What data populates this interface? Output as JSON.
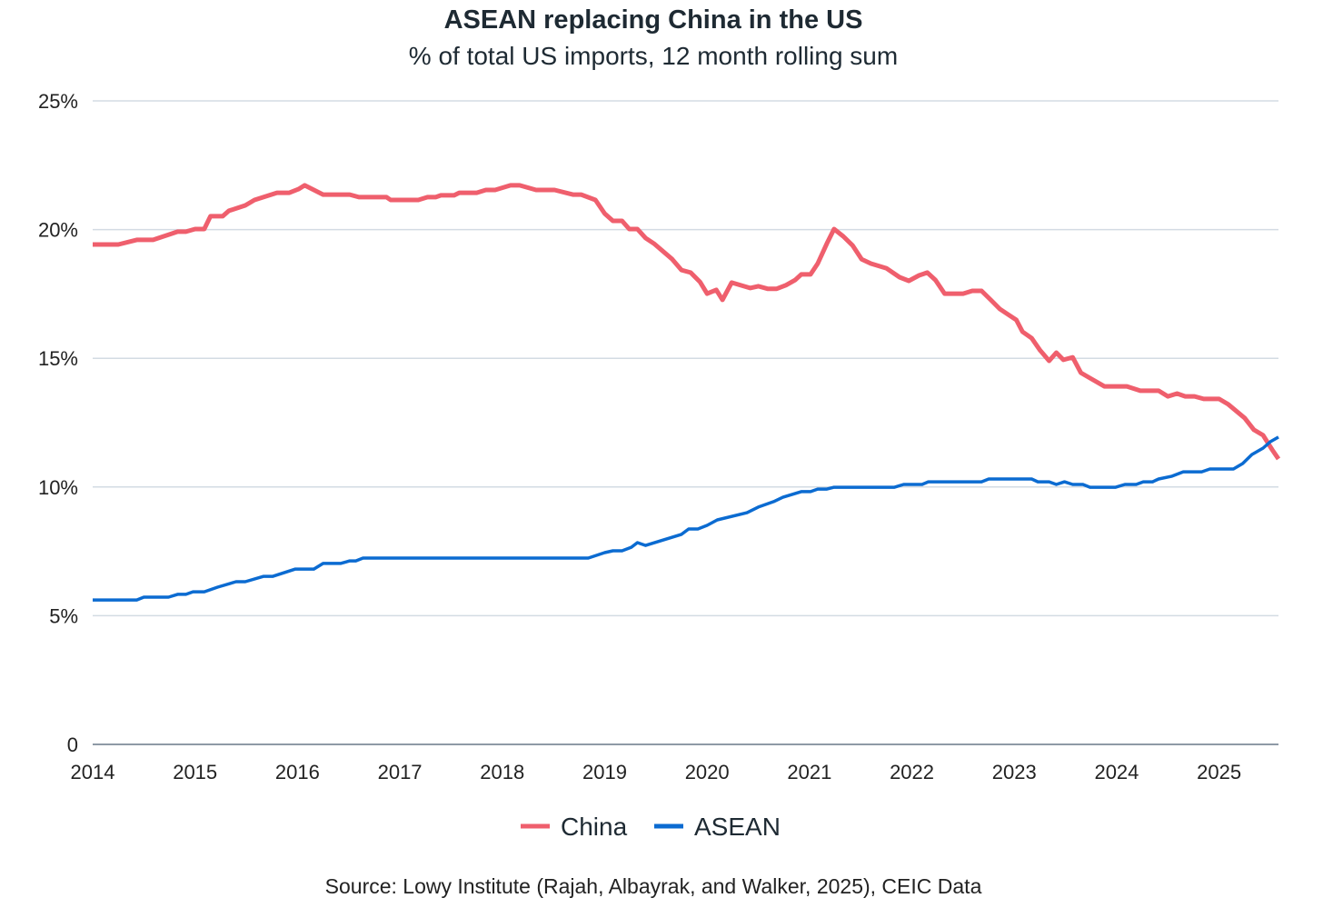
{
  "chart_data": {
    "type": "line",
    "title": "ASEAN replacing China in the US",
    "subtitle": "% of total US imports, 12 month rolling sum",
    "xlabel": "",
    "ylabel": "",
    "ylim": [
      0,
      25
    ],
    "xlim": [
      2014,
      2025.58
    ],
    "y_ticks": [
      0,
      5,
      10,
      15,
      20,
      25
    ],
    "y_tick_labels": [
      "0",
      "5%",
      "10%",
      "15%",
      "20%",
      "25%"
    ],
    "x_ticks": [
      2014,
      2015,
      2016,
      2017,
      2018,
      2019,
      2020,
      2021,
      2022,
      2023,
      2024,
      2025
    ],
    "x_tick_labels": [
      "2014",
      "2015",
      "2016",
      "2017",
      "2018",
      "2019",
      "2020",
      "2021",
      "2022",
      "2023",
      "2024",
      "2025"
    ],
    "grid": "horizontal",
    "legend_position": "bottom-center",
    "series": [
      {
        "name": "China",
        "color": "#ef5f6d",
        "points": [
          [
            2014.0,
            19.42
          ],
          [
            2014.25,
            19.42
          ],
          [
            2014.43,
            19.6
          ],
          [
            2014.59,
            19.6
          ],
          [
            2014.83,
            19.92
          ],
          [
            2014.91,
            19.92
          ],
          [
            2015.0,
            20.02
          ],
          [
            2015.09,
            20.02
          ],
          [
            2015.15,
            20.52
          ],
          [
            2015.27,
            20.52
          ],
          [
            2015.33,
            20.73
          ],
          [
            2015.49,
            20.94
          ],
          [
            2015.58,
            21.15
          ],
          [
            2015.8,
            21.43
          ],
          [
            2015.92,
            21.43
          ],
          [
            2016.01,
            21.57
          ],
          [
            2016.07,
            21.72
          ],
          [
            2016.25,
            21.36
          ],
          [
            2016.51,
            21.36
          ],
          [
            2016.6,
            21.26
          ],
          [
            2016.87,
            21.26
          ],
          [
            2016.91,
            21.15
          ],
          [
            2017.18,
            21.15
          ],
          [
            2017.27,
            21.26
          ],
          [
            2017.35,
            21.26
          ],
          [
            2017.4,
            21.33
          ],
          [
            2017.53,
            21.33
          ],
          [
            2017.58,
            21.43
          ],
          [
            2017.75,
            21.43
          ],
          [
            2017.84,
            21.54
          ],
          [
            2017.93,
            21.54
          ],
          [
            2018.08,
            21.72
          ],
          [
            2018.17,
            21.72
          ],
          [
            2018.33,
            21.54
          ],
          [
            2018.51,
            21.54
          ],
          [
            2018.69,
            21.36
          ],
          [
            2018.77,
            21.36
          ],
          [
            2018.91,
            21.15
          ],
          [
            2019.0,
            20.62
          ],
          [
            2019.08,
            20.34
          ],
          [
            2019.17,
            20.34
          ],
          [
            2019.24,
            20.02
          ],
          [
            2019.32,
            20.02
          ],
          [
            2019.4,
            19.67
          ],
          [
            2019.48,
            19.46
          ],
          [
            2019.66,
            18.85
          ],
          [
            2019.75,
            18.43
          ],
          [
            2019.84,
            18.33
          ],
          [
            2019.93,
            17.97
          ],
          [
            2020.0,
            17.51
          ],
          [
            2020.09,
            17.66
          ],
          [
            2020.15,
            17.27
          ],
          [
            2020.24,
            17.94
          ],
          [
            2020.42,
            17.73
          ],
          [
            2020.5,
            17.8
          ],
          [
            2020.59,
            17.7
          ],
          [
            2020.68,
            17.7
          ],
          [
            2020.77,
            17.84
          ],
          [
            2020.86,
            18.04
          ],
          [
            2020.92,
            18.26
          ],
          [
            2021.01,
            18.26
          ],
          [
            2021.08,
            18.68
          ],
          [
            2021.17,
            19.46
          ],
          [
            2021.24,
            20.02
          ],
          [
            2021.33,
            19.74
          ],
          [
            2021.42,
            19.39
          ],
          [
            2021.51,
            18.85
          ],
          [
            2021.6,
            18.68
          ],
          [
            2021.75,
            18.5
          ],
          [
            2021.88,
            18.15
          ],
          [
            2021.97,
            18.01
          ],
          [
            2022.07,
            18.22
          ],
          [
            2022.15,
            18.33
          ],
          [
            2022.23,
            18.04
          ],
          [
            2022.32,
            17.51
          ],
          [
            2022.5,
            17.51
          ],
          [
            2022.59,
            17.62
          ],
          [
            2022.68,
            17.62
          ],
          [
            2022.77,
            17.27
          ],
          [
            2022.86,
            16.91
          ],
          [
            2022.94,
            16.7
          ],
          [
            2023.02,
            16.49
          ],
          [
            2023.08,
            16.03
          ],
          [
            2023.17,
            15.78
          ],
          [
            2023.25,
            15.32
          ],
          [
            2023.34,
            14.9
          ],
          [
            2023.41,
            15.22
          ],
          [
            2023.48,
            14.94
          ],
          [
            2023.57,
            15.04
          ],
          [
            2023.65,
            14.44
          ],
          [
            2023.74,
            14.23
          ],
          [
            2023.88,
            13.91
          ],
          [
            2024.1,
            13.91
          ],
          [
            2024.23,
            13.74
          ],
          [
            2024.41,
            13.74
          ],
          [
            2024.5,
            13.52
          ],
          [
            2024.59,
            13.63
          ],
          [
            2024.67,
            13.52
          ],
          [
            2024.76,
            13.52
          ],
          [
            2024.85,
            13.42
          ],
          [
            2025.0,
            13.42
          ],
          [
            2025.09,
            13.21
          ],
          [
            2025.25,
            12.68
          ],
          [
            2025.34,
            12.22
          ],
          [
            2025.43,
            12.01
          ],
          [
            2025.52,
            11.44
          ],
          [
            2025.58,
            11.09
          ]
        ]
      },
      {
        "name": "ASEAN",
        "color": "#0b6bd1",
        "points": [
          [
            2014.0,
            5.61
          ],
          [
            2014.43,
            5.61
          ],
          [
            2014.5,
            5.72
          ],
          [
            2014.74,
            5.72
          ],
          [
            2014.83,
            5.83
          ],
          [
            2014.91,
            5.83
          ],
          [
            2014.98,
            5.93
          ],
          [
            2015.09,
            5.93
          ],
          [
            2015.22,
            6.11
          ],
          [
            2015.4,
            6.32
          ],
          [
            2015.49,
            6.32
          ],
          [
            2015.67,
            6.53
          ],
          [
            2015.76,
            6.53
          ],
          [
            2015.98,
            6.81
          ],
          [
            2016.16,
            6.81
          ],
          [
            2016.25,
            7.03
          ],
          [
            2016.42,
            7.03
          ],
          [
            2016.51,
            7.13
          ],
          [
            2016.57,
            7.13
          ],
          [
            2016.64,
            7.24
          ],
          [
            2018.84,
            7.24
          ],
          [
            2019.0,
            7.45
          ],
          [
            2019.08,
            7.52
          ],
          [
            2019.17,
            7.52
          ],
          [
            2019.26,
            7.66
          ],
          [
            2019.32,
            7.84
          ],
          [
            2019.4,
            7.73
          ],
          [
            2019.75,
            8.16
          ],
          [
            2019.82,
            8.37
          ],
          [
            2019.91,
            8.37
          ],
          [
            2020.0,
            8.51
          ],
          [
            2020.1,
            8.72
          ],
          [
            2020.39,
            9.0
          ],
          [
            2020.5,
            9.22
          ],
          [
            2020.65,
            9.43
          ],
          [
            2020.74,
            9.6
          ],
          [
            2020.92,
            9.82
          ],
          [
            2021.01,
            9.82
          ],
          [
            2021.08,
            9.92
          ],
          [
            2021.17,
            9.92
          ],
          [
            2021.24,
            9.99
          ],
          [
            2021.83,
            9.99
          ],
          [
            2021.92,
            10.1
          ],
          [
            2022.1,
            10.1
          ],
          [
            2022.16,
            10.2
          ],
          [
            2022.68,
            10.2
          ],
          [
            2022.75,
            10.31
          ],
          [
            2023.17,
            10.31
          ],
          [
            2023.23,
            10.2
          ],
          [
            2023.34,
            10.2
          ],
          [
            2023.41,
            10.1
          ],
          [
            2023.49,
            10.2
          ],
          [
            2023.57,
            10.1
          ],
          [
            2023.67,
            10.1
          ],
          [
            2023.74,
            9.99
          ],
          [
            2023.99,
            9.99
          ],
          [
            2024.08,
            10.1
          ],
          [
            2024.19,
            10.1
          ],
          [
            2024.26,
            10.2
          ],
          [
            2024.35,
            10.2
          ],
          [
            2024.41,
            10.31
          ],
          [
            2024.54,
            10.42
          ],
          [
            2024.65,
            10.59
          ],
          [
            2024.83,
            10.59
          ],
          [
            2024.91,
            10.7
          ],
          [
            2025.14,
            10.7
          ],
          [
            2025.23,
            10.91
          ],
          [
            2025.32,
            11.26
          ],
          [
            2025.43,
            11.51
          ],
          [
            2025.5,
            11.76
          ],
          [
            2025.58,
            11.94
          ]
        ]
      }
    ],
    "source": "Source: Lowy Institute (Rajah, Albayrak, and Walker, 2025), CEIC Data"
  }
}
